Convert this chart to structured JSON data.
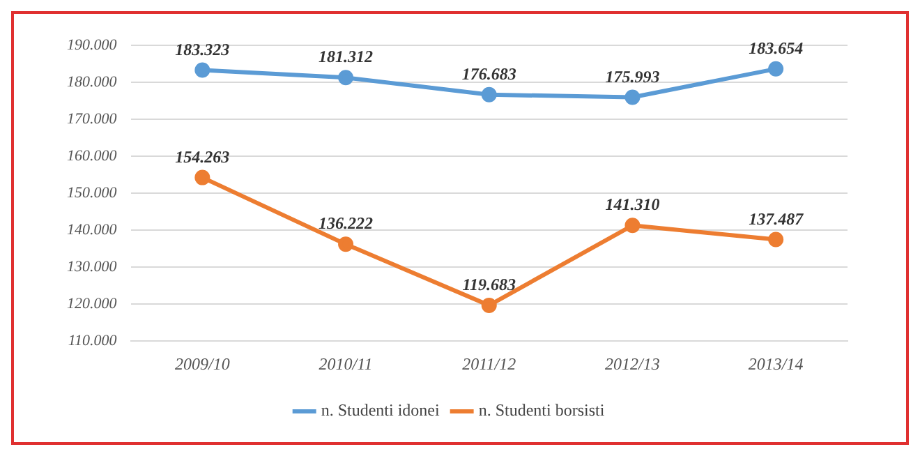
{
  "chart_data": {
    "type": "line",
    "categories": [
      "2009/10",
      "2010/11",
      "2011/12",
      "2012/13",
      "2013/14"
    ],
    "series": [
      {
        "name": "n. Studenti idonei",
        "color": "#5b9bd5",
        "values": [
          183323,
          181312,
          176683,
          175993,
          183654
        ],
        "value_labels": [
          "183.323",
          "181.312",
          "176.683",
          "175.993",
          "183.654"
        ]
      },
      {
        "name": "n. Studenti borsisti",
        "color": "#ed7d31",
        "values": [
          154263,
          136222,
          119683,
          141310,
          137487
        ],
        "value_labels": [
          "154.263",
          "136.222",
          "119.683",
          "141.310",
          "137.487"
        ]
      }
    ],
    "ylim": [
      110000,
      190000
    ],
    "yticks": [
      {
        "value": 110000,
        "label": "110.000"
      },
      {
        "value": 120000,
        "label": "120.000"
      },
      {
        "value": 130000,
        "label": "130.000"
      },
      {
        "value": 140000,
        "label": "140.000"
      },
      {
        "value": 150000,
        "label": "150.000"
      },
      {
        "value": 160000,
        "label": "160.000"
      },
      {
        "value": 170000,
        "label": "170.000"
      },
      {
        "value": 180000,
        "label": "180.000"
      },
      {
        "value": 190000,
        "label": "190.000"
      }
    ],
    "grid": "y",
    "legend": "bottom",
    "marker": "circle",
    "line_style": "solid"
  }
}
